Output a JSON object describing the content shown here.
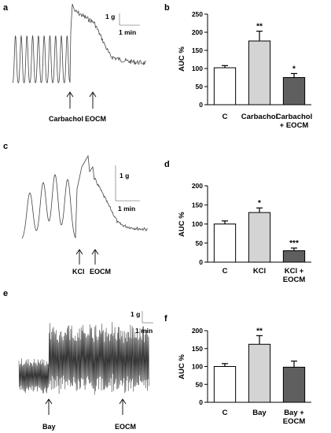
{
  "panels": {
    "a": {
      "label": "a",
      "scale_force": "1 g",
      "scale_time": "1 min",
      "annotations": [
        "Carbachol",
        "EOCM"
      ]
    },
    "c": {
      "label": "c",
      "scale_force": "1 g",
      "scale_time": "1 min",
      "annotations": [
        "KCl",
        "EOCM"
      ]
    },
    "e": {
      "label": "e",
      "scale_force": "1 g",
      "scale_time": "1 min",
      "annotations": [
        "Bay",
        "EOCM"
      ]
    }
  },
  "chart_data": [
    {
      "label": "b",
      "type": "bar",
      "ylabel": "AUC %",
      "ylim": [
        0,
        250
      ],
      "yticks": [
        0,
        50,
        100,
        150,
        200,
        250
      ],
      "categories": [
        [
          "C"
        ],
        [
          "Carbachol"
        ],
        [
          "Carbachol",
          "+ EOCM"
        ]
      ],
      "values": [
        102,
        176,
        75
      ],
      "errors": [
        6,
        27,
        11
      ],
      "significance": [
        "",
        "**",
        "*"
      ],
      "colors": [
        "#ffffff",
        "#d4d4d4",
        "#5f5f5f"
      ]
    },
    {
      "label": "d",
      "type": "bar",
      "ylabel": "AUC %",
      "ylim": [
        0,
        200
      ],
      "yticks": [
        0,
        50,
        100,
        150,
        200
      ],
      "categories": [
        [
          "C"
        ],
        [
          "KCl"
        ],
        [
          "KCl +",
          "EOCM"
        ]
      ],
      "values": [
        100,
        130,
        30
      ],
      "errors": [
        8,
        12,
        7
      ],
      "significance": [
        "",
        "*",
        "***"
      ],
      "colors": [
        "#ffffff",
        "#d4d4d4",
        "#5f5f5f"
      ]
    },
    {
      "label": "f",
      "type": "bar",
      "ylabel": "AUC %",
      "ylim": [
        0,
        200
      ],
      "yticks": [
        0,
        50,
        100,
        150,
        200
      ],
      "categories": [
        [
          "C"
        ],
        [
          "Bay"
        ],
        [
          "Bay +",
          "EOCM"
        ]
      ],
      "values": [
        100,
        162,
        98
      ],
      "errors": [
        8,
        24,
        17
      ],
      "significance": [
        "",
        "**",
        ""
      ],
      "colors": [
        "#ffffff",
        "#d4d4d4",
        "#5f5f5f"
      ]
    }
  ]
}
